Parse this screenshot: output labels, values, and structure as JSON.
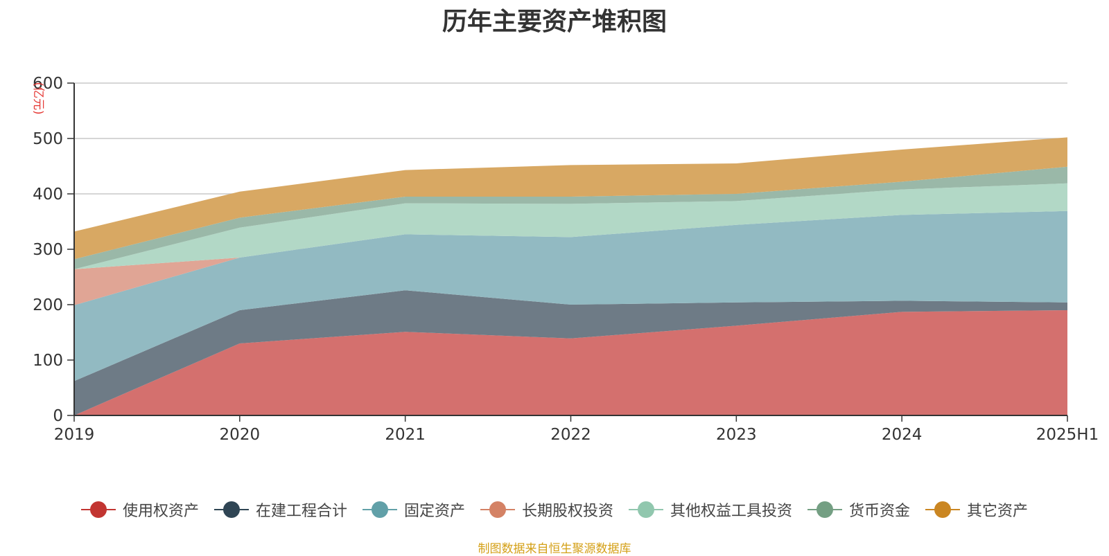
{
  "chart_data": {
    "type": "area",
    "stacked": true,
    "title": "历年主要资产堆积图",
    "unit": "(亿元)",
    "xlabel": "",
    "ylabel": "",
    "categories": [
      "2019",
      "2020",
      "2021",
      "2022",
      "2023",
      "2024",
      "2025H1"
    ],
    "ylim": [
      0,
      600
    ],
    "yticks": [
      0,
      100,
      200,
      300,
      400,
      500,
      600
    ],
    "grid": true,
    "legend_position": "bottom",
    "series": [
      {
        "name": "使用权资产",
        "color": "#c23531",
        "area_color": "#d4706e",
        "values": [
          0,
          130,
          151,
          139,
          162,
          187,
          190
        ]
      },
      {
        "name": "在建工程合计",
        "color": "#2f4554",
        "area_color": "#6e7b86",
        "values": [
          62,
          60,
          75,
          61,
          42,
          20,
          14
        ]
      },
      {
        "name": "固定资产",
        "color": "#61a0a8",
        "area_color": "#92bac2",
        "values": [
          137,
          95,
          101,
          122,
          140,
          155,
          165
        ]
      },
      {
        "name": "长期股权投资",
        "color": "#d48265",
        "area_color": "#e0a595",
        "values": [
          65,
          0,
          0,
          0,
          0,
          0,
          0
        ]
      },
      {
        "name": "其他权益工具投资",
        "color": "#91c7ae",
        "area_color": "#b2d8c6",
        "values": [
          0,
          54,
          56,
          60,
          43,
          46,
          50
        ]
      },
      {
        "name": "货币资金",
        "color": "#749f83",
        "area_color": "#9ab8a8",
        "values": [
          18,
          18,
          12,
          13,
          13,
          14,
          30
        ]
      },
      {
        "name": "其它资产",
        "color": "#ca8622",
        "area_color": "#d8a863",
        "values": [
          50,
          47,
          48,
          57,
          55,
          58,
          53
        ]
      }
    ]
  },
  "source_note": "制图数据来自恒生聚源数据库"
}
